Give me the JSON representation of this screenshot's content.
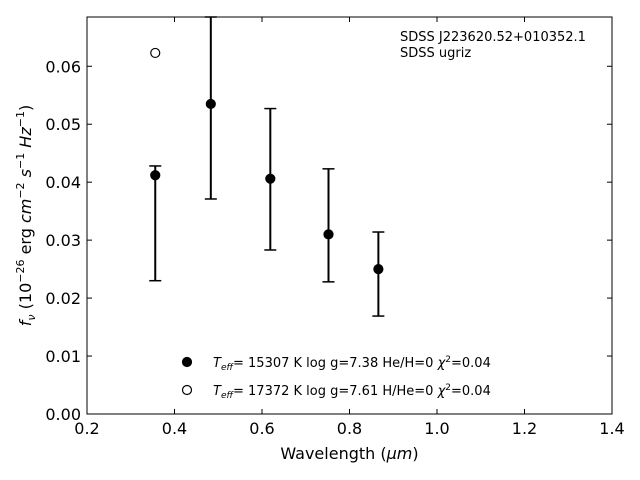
{
  "chart_data": {
    "type": "scatter",
    "xlabel": "Wavelength (μm)",
    "ylabel": "f_ν (10^-26 erg cm^-2 s^-1 Hz^-1)",
    "xlim": [
      0.2,
      1.4
    ],
    "ylim": [
      0.0,
      0.0685
    ],
    "x_ticks": [
      "0.2",
      "0.4",
      "0.6",
      "0.8",
      "1.0",
      "1.2",
      "1.4"
    ],
    "y_ticks": [
      "0.00",
      "0.01",
      "0.02",
      "0.03",
      "0.04",
      "0.05",
      "0.06"
    ],
    "x_tick_values": [
      0.2,
      0.4,
      0.6,
      0.8,
      1.0,
      1.2,
      1.4
    ],
    "y_tick_values": [
      0.0,
      0.01,
      0.02,
      0.03,
      0.04,
      0.05,
      0.06
    ],
    "grid": false,
    "annotation_lines": [
      "SDSS J223620.52+010352.1",
      "SDSS ugriz"
    ],
    "observed": {
      "x": [
        0.356,
        0.356,
        0.483,
        0.626,
        0.767,
        0.91
      ],
      "y": [
        0.0412,
        0.0412,
        0.0535,
        0.0406,
        0.031,
        0.025
      ],
      "yerr_low": [
        0.023,
        0.023,
        0.0371,
        0.0283,
        0.0228,
        0.0169
      ],
      "yerr_high": [
        0.0428,
        0.0428,
        0.0685,
        0.0527,
        0.0423,
        0.0314
      ]
    },
    "series": [
      {
        "marker": "filled",
        "x": [
          0.356,
          0.483,
          0.619,
          0.752,
          0.866
        ],
        "y": [
          0.0412,
          0.0535,
          0.0406,
          0.031,
          0.025
        ],
        "legend": {
          "t_symbol": "T",
          "t_sub": "eff",
          "text": "= 15307 K  log g=7.38  He/H=0  ",
          "chi": "χ",
          "chi_sup": "2",
          "chi_val": "=0.04"
        }
      },
      {
        "marker": "open",
        "x": [
          0.356
        ],
        "y": [
          0.0623
        ],
        "legend": {
          "t_symbol": "T",
          "t_sub": "eff",
          "text": "= 17372 K  log g=7.61  H/He=0  ",
          "chi": "χ",
          "chi_sup": "2",
          "chi_val": "=0.04"
        }
      }
    ]
  }
}
